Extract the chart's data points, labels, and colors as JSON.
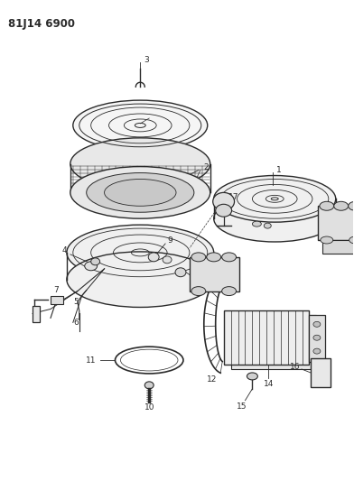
{
  "title": "81J14 6900",
  "bg_color": "#ffffff",
  "line_color": "#2a2a2a",
  "fig_width": 3.92,
  "fig_height": 5.33,
  "dpi": 100
}
